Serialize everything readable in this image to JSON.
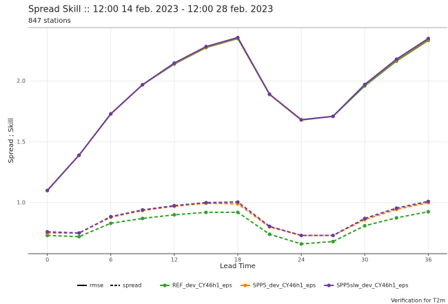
{
  "chart_data": {
    "type": "line",
    "title": "Spread Skill :: 12:00 14 feb. 2023 - 12:00 28 feb. 2023",
    "subtitle": "847 stations",
    "x_label": "Lead Time",
    "y_label": "Spread ; Skill",
    "caption": "Verification for T2m",
    "x": [
      0,
      3,
      6,
      9,
      12,
      15,
      18,
      21,
      24,
      27,
      30,
      33,
      36
    ],
    "metrics": [
      "rmse",
      "spread"
    ],
    "series": [
      {
        "name": "REF_dev_CY46h1_eps",
        "color": "#33a02c",
        "rmse": [
          1.1,
          1.39,
          1.73,
          1.97,
          2.14,
          2.275,
          2.35,
          1.89,
          1.68,
          1.71,
          1.96,
          2.165,
          2.335
        ],
        "spread": [
          0.73,
          0.72,
          0.83,
          0.87,
          0.9,
          0.92,
          0.92,
          0.74,
          0.66,
          0.68,
          0.81,
          0.875,
          0.925
        ]
      },
      {
        "name": "SPP5_dev_CY46h1_eps",
        "color": "#ff7f00",
        "rmse": [
          1.1,
          1.39,
          1.73,
          1.97,
          2.145,
          2.28,
          2.355,
          1.89,
          1.68,
          1.71,
          1.97,
          2.175,
          2.345
        ],
        "spread": [
          0.75,
          0.75,
          0.88,
          0.935,
          0.97,
          0.995,
          0.99,
          0.8,
          0.73,
          0.73,
          0.86,
          0.945,
          1.0
        ]
      },
      {
        "name": "SPP5slw_dev_CY46h1_eps",
        "color": "#6a3d9a",
        "rmse": [
          1.1,
          1.39,
          1.73,
          1.97,
          2.148,
          2.284,
          2.358,
          1.892,
          1.682,
          1.71,
          1.972,
          2.18,
          2.35
        ],
        "spread": [
          0.76,
          0.75,
          0.885,
          0.94,
          0.975,
          1.0,
          1.005,
          0.805,
          0.73,
          0.73,
          0.87,
          0.955,
          1.01
        ]
      }
    ],
    "xlim": [
      -1.8,
      37.8
    ],
    "ylim": [
      0.58,
      2.44
    ],
    "xticks": [
      0,
      6,
      12,
      18,
      24,
      30,
      36
    ],
    "yticks": [
      {
        "value": 1,
        "label": "1.0"
      },
      1.5,
      {
        "value": 2,
        "label": "2.0"
      }
    ],
    "grid": true
  }
}
